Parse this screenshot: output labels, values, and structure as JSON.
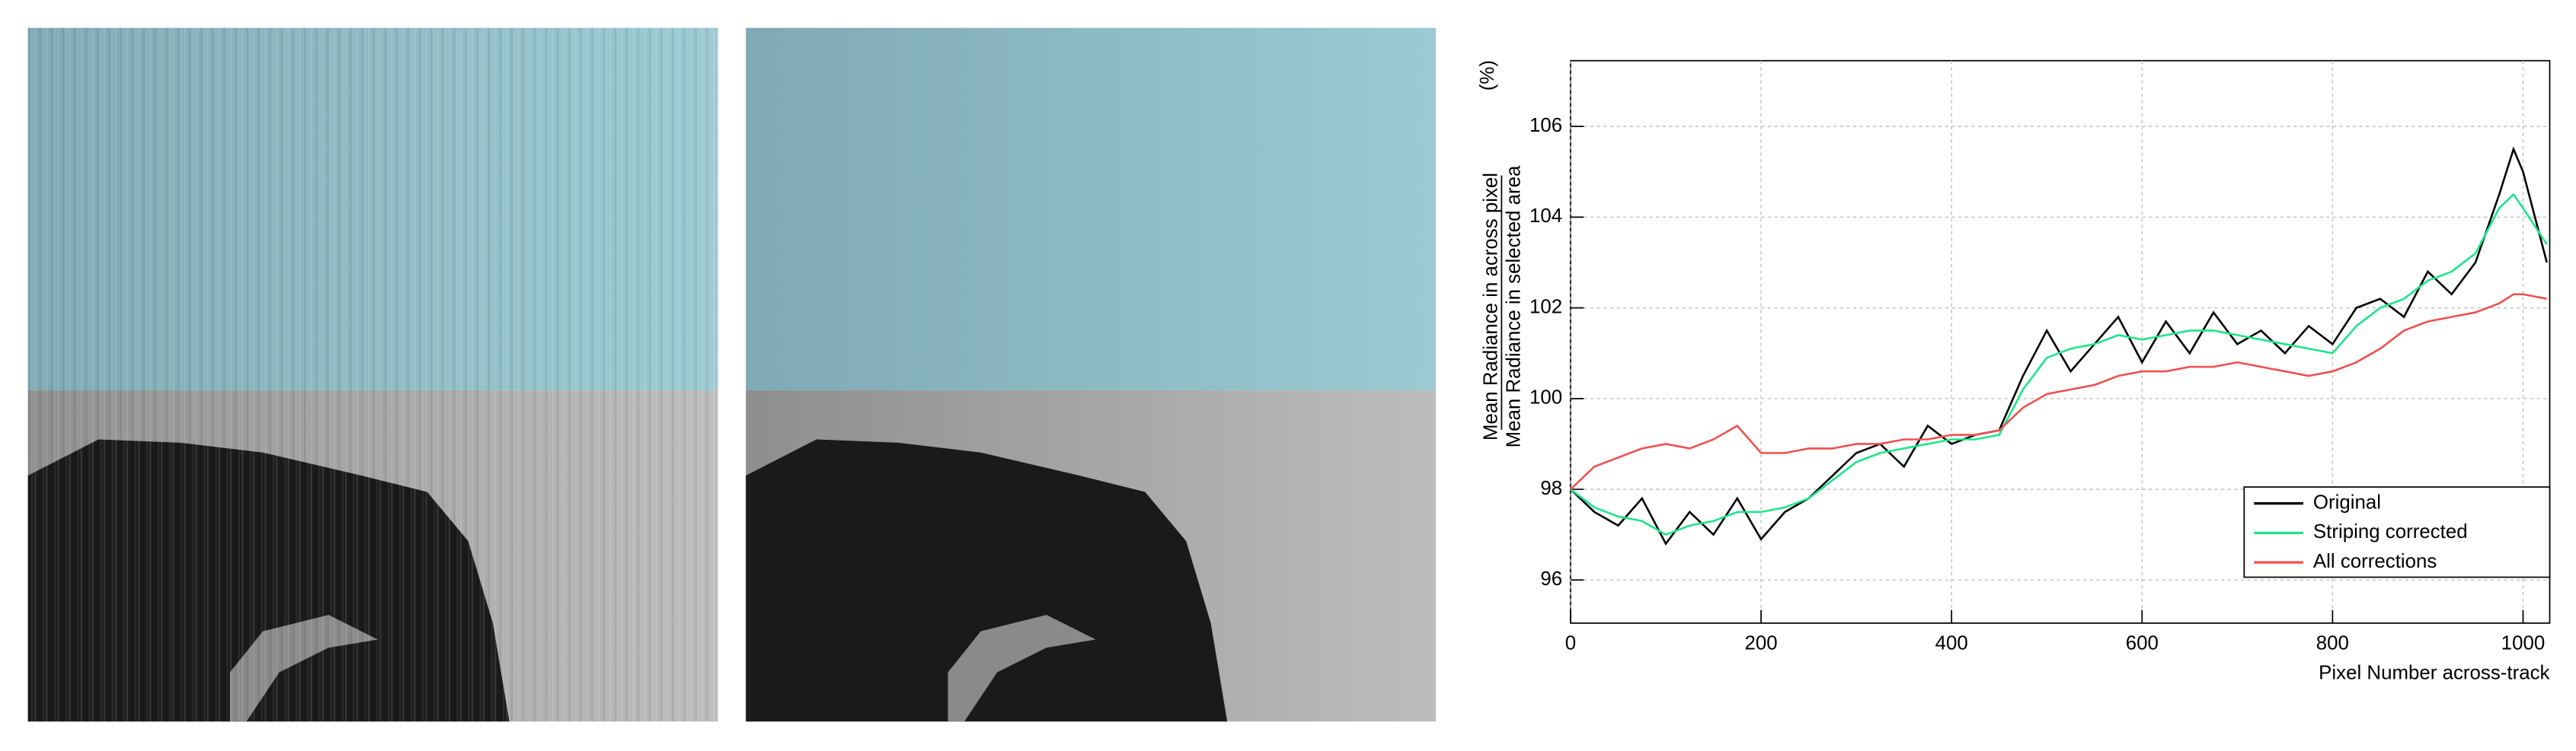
{
  "chart_data": {
    "type": "line",
    "ylabel_numerator": "Mean Radiance in across pixel",
    "ylabel_denominator": "Mean Radiance in selected area",
    "ylabel_unit": "(%)",
    "xlabel": "Pixel Number across-track",
    "x": [
      0,
      25,
      50,
      75,
      100,
      125,
      150,
      175,
      200,
      225,
      250,
      275,
      300,
      325,
      350,
      375,
      400,
      425,
      450,
      475,
      500,
      525,
      550,
      575,
      600,
      625,
      650,
      675,
      700,
      725,
      750,
      775,
      800,
      825,
      850,
      875,
      900,
      925,
      950,
      975,
      990,
      1000,
      1025
    ],
    "series": [
      {
        "name": "Original",
        "color": "#000000",
        "values": [
          98,
          97.5,
          97.2,
          97.8,
          96.8,
          97.5,
          97,
          97.8,
          96.9,
          97.5,
          97.8,
          98.3,
          98.8,
          99,
          98.5,
          99.4,
          99,
          99.2,
          99.3,
          100.5,
          101.5,
          100.6,
          101.2,
          101.8,
          100.8,
          101.7,
          101,
          101.9,
          101.2,
          101.5,
          101,
          101.6,
          101.2,
          102,
          102.2,
          101.8,
          102.8,
          102.3,
          103,
          104.5,
          105.5,
          105,
          103
        ]
      },
      {
        "name": "Striping corrected",
        "color": "#1de58a",
        "values": [
          98,
          97.6,
          97.4,
          97.3,
          97,
          97.2,
          97.3,
          97.5,
          97.5,
          97.6,
          97.8,
          98.2,
          98.6,
          98.8,
          98.9,
          99,
          99.1,
          99.1,
          99.2,
          100.2,
          100.9,
          101.1,
          101.2,
          101.4,
          101.3,
          101.4,
          101.5,
          101.5,
          101.4,
          101.3,
          101.2,
          101.1,
          101,
          101.6,
          102,
          102.2,
          102.6,
          102.8,
          103.2,
          104.2,
          104.5,
          104.2,
          103.4
        ]
      },
      {
        "name": "All corrections",
        "color": "#f05050",
        "values": [
          98,
          98.5,
          98.7,
          98.9,
          99,
          98.9,
          99.1,
          99.4,
          98.8,
          98.8,
          98.9,
          98.9,
          99,
          99,
          99.1,
          99.1,
          99.2,
          99.2,
          99.3,
          99.8,
          100.1,
          100.2,
          100.3,
          100.5,
          100.6,
          100.6,
          100.7,
          100.7,
          100.8,
          100.7,
          100.6,
          100.5,
          100.6,
          100.8,
          101.1,
          101.5,
          101.7,
          101.8,
          101.9,
          102.1,
          102.3,
          102.3,
          102.2
        ]
      }
    ],
    "xlim": [
      0,
      1028
    ],
    "ylim": [
      95.05,
      107.45
    ],
    "xticks": [
      0,
      200,
      400,
      600,
      800,
      1000
    ],
    "yticks": [
      96,
      98,
      100,
      102,
      104,
      106
    ],
    "grid": true,
    "legend": "lower right"
  }
}
